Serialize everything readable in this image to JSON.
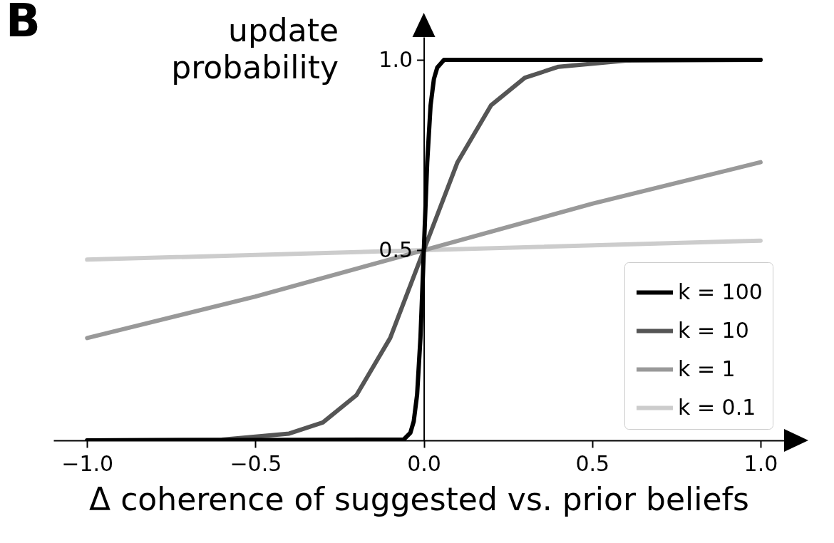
{
  "chart_data": {
    "type": "line",
    "xlabel": "Δ coherence of suggested vs. prior beliefs",
    "ylabel": "update probability",
    "annotations": [
      "B"
    ],
    "xlim": [
      -1.1,
      1.07
    ],
    "ylim": [
      0,
      1.06
    ],
    "xticks": [
      {
        "value": -1,
        "label": "−1.0"
      },
      {
        "value": -0.5,
        "label": "−0.5"
      },
      {
        "value": 0,
        "label": "0.0"
      },
      {
        "value": 0.5,
        "label": "0.5"
      },
      {
        "value": 1,
        "label": "1.0"
      }
    ],
    "yticks": [
      {
        "value": 0.5,
        "label": "0.5"
      },
      {
        "value": 1,
        "label": "1.0"
      }
    ],
    "grid": false,
    "legend": "bottom right",
    "line_style": "solid",
    "series": [
      {
        "name": "k = 100",
        "color": "#000000",
        "x": [
          -1,
          -0.06,
          -0.04,
          -0.03,
          -0.02,
          -0.01,
          0,
          0.01,
          0.02,
          0.03,
          0.04,
          0.06,
          1
        ],
        "values": [
          0,
          0.002,
          0.02,
          0.05,
          0.12,
          0.27,
          0.5,
          0.73,
          0.88,
          0.95,
          0.98,
          1,
          1
        ]
      },
      {
        "name": "k = 10",
        "color": "#555555",
        "x": [
          -1,
          -0.6,
          -0.4,
          -0.3,
          -0.2,
          -0.1,
          0,
          0.1,
          0.2,
          0.3,
          0.4,
          0.6,
          1
        ],
        "values": [
          0,
          0.002,
          0.018,
          0.047,
          0.119,
          0.269,
          0.5,
          0.731,
          0.881,
          0.953,
          0.982,
          0.998,
          1
        ]
      },
      {
        "name": "k = 1",
        "color": "#999999",
        "x": [
          -1,
          -0.5,
          0,
          0.5,
          1
        ],
        "values": [
          0.269,
          0.378,
          0.5,
          0.622,
          0.731
        ]
      },
      {
        "name": "k = 0.1",
        "color": "#cccccc",
        "x": [
          -1,
          0,
          1
        ],
        "values": [
          0.475,
          0.5,
          0.525
        ]
      }
    ]
  }
}
